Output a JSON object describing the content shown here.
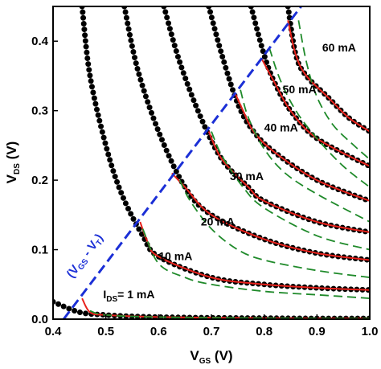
{
  "chart_data": {
    "type": "line",
    "xlabel": {
      "main": "V",
      "sub": "GS",
      "unit": " (V)"
    },
    "ylabel": {
      "main": "V",
      "sub": "DS",
      "unit": " (V)"
    },
    "xlim": [
      0.4,
      1.0
    ],
    "ylim": [
      0.0,
      0.45
    ],
    "xticks": [
      "0.4",
      "0.5",
      "0.6",
      "0.7",
      "0.8",
      "0.9",
      "1.0"
    ],
    "yticks": [
      "0.0",
      "0.1",
      "0.2",
      "0.3",
      "0.4"
    ],
    "grid": false,
    "threshold_voltage": 0.42,
    "boundary_line": {
      "style": "dashed",
      "color": "#1b2fd6",
      "label_parts": {
        "open": "(V",
        "sub1": "GS",
        "mid": " - V",
        "sub2": "T",
        "close": ")"
      },
      "x": [
        0.42,
        0.87
      ],
      "y": [
        0.0,
        0.45
      ]
    },
    "current_labels": [
      {
        "text": "I",
        "sub": "DS",
        "rest": "= 1 mA",
        "x": 0.495,
        "y": 0.03
      },
      {
        "text": "10 mA",
        "x": 0.6,
        "y": 0.085
      },
      {
        "text": "20 mA",
        "x": 0.68,
        "y": 0.135
      },
      {
        "text": "30 mA",
        "x": 0.735,
        "y": 0.2
      },
      {
        "text": "40 mA",
        "x": 0.8,
        "y": 0.27
      },
      {
        "text": "50 mA",
        "x": 0.835,
        "y": 0.325
      },
      {
        "text": "60 mA",
        "x": 0.91,
        "y": 0.385
      }
    ],
    "series": [
      {
        "style": "dots",
        "color": "#000000",
        "curves": [
          {
            "current": 1,
            "x": [
              0.4,
              0.45,
              0.5,
              0.55,
              0.6,
              0.7,
              0.8,
              0.9,
              1.0
            ],
            "y": [
              0.025,
              0.01,
              0.006,
              0.004,
              0.003,
              0.002,
              0.0015,
              0.001,
              0.001
            ]
          },
          {
            "current": 10,
            "x": [
              0.455,
              0.47,
              0.5,
              0.53,
              0.57,
              0.6,
              0.7,
              0.8,
              0.9,
              1.0
            ],
            "y": [
              0.45,
              0.35,
              0.25,
              0.18,
              0.12,
              0.09,
              0.06,
              0.05,
              0.045,
              0.042
            ]
          },
          {
            "current": 20,
            "x": [
              0.535,
              0.56,
              0.6,
              0.65,
              0.7,
              0.8,
              0.9,
              1.0
            ],
            "y": [
              0.45,
              0.36,
              0.27,
              0.19,
              0.15,
              0.115,
              0.095,
              0.085
            ]
          },
          {
            "current": 30,
            "x": [
              0.61,
              0.64,
              0.68,
              0.72,
              0.77,
              0.8,
              0.9,
              1.0
            ],
            "y": [
              0.45,
              0.37,
              0.29,
              0.23,
              0.19,
              0.17,
              0.14,
              0.125
            ]
          },
          {
            "current": 40,
            "x": [
              0.695,
              0.72,
              0.75,
              0.78,
              0.82,
              0.9,
              1.0
            ],
            "y": [
              0.45,
              0.38,
              0.31,
              0.27,
              0.24,
              0.2,
              0.17
            ]
          },
          {
            "current": 50,
            "x": [
              0.775,
              0.8,
              0.82,
              0.85,
              0.9,
              1.0
            ],
            "y": [
              0.45,
              0.38,
              0.34,
              0.3,
              0.26,
              0.22
            ]
          },
          {
            "current": 60,
            "x": [
              0.845,
              0.86,
              0.88,
              0.92,
              0.96,
              1.0
            ],
            "y": [
              0.45,
              0.38,
              0.35,
              0.32,
              0.29,
              0.27
            ]
          }
        ]
      },
      {
        "style": "solid",
        "color": "#e8221c",
        "curves": [
          {
            "current": 1,
            "x": [
              0.455,
              0.47,
              0.5,
              0.6,
              0.8,
              1.0
            ],
            "y": [
              0.03,
              0.01,
              0.006,
              0.003,
              0.0015,
              0.001
            ]
          },
          {
            "current": 10,
            "x": [
              0.565,
              0.58,
              0.6,
              0.7,
              0.8,
              0.9,
              1.0
            ],
            "y": [
              0.14,
              0.11,
              0.09,
              0.06,
              0.05,
              0.045,
              0.042
            ]
          },
          {
            "current": 20,
            "x": [
              0.625,
              0.65,
              0.7,
              0.8,
              0.9,
              1.0
            ],
            "y": [
              0.21,
              0.19,
              0.15,
              0.115,
              0.095,
              0.085
            ]
          },
          {
            "current": 30,
            "x": [
              0.695,
              0.72,
              0.77,
              0.8,
              0.9,
              1.0
            ],
            "y": [
              0.27,
              0.23,
              0.19,
              0.17,
              0.14,
              0.125
            ]
          },
          {
            "current": 40,
            "x": [
              0.745,
              0.76,
              0.78,
              0.82,
              0.9,
              1.0
            ],
            "y": [
              0.325,
              0.3,
              0.27,
              0.24,
              0.2,
              0.17
            ]
          },
          {
            "current": 50,
            "x": [
              0.795,
              0.82,
              0.85,
              0.9,
              1.0
            ],
            "y": [
              0.375,
              0.34,
              0.3,
              0.26,
              0.22
            ]
          },
          {
            "current": 60,
            "x": [
              0.845,
              0.86,
              0.88,
              0.92,
              0.96,
              1.0
            ],
            "y": [
              0.43,
              0.38,
              0.35,
              0.32,
              0.29,
              0.27
            ]
          }
        ]
      },
      {
        "style": "dashed",
        "color": "#1f8a2a",
        "curves": [
          {
            "current": 1,
            "x": [
              0.47,
              0.5,
              0.6,
              0.8,
              1.0
            ],
            "y": [
              0.012,
              0.006,
              0.003,
              0.0015,
              0.001
            ]
          },
          {
            "current": 10,
            "x": [
              0.57,
              0.6,
              0.65,
              0.7,
              0.8,
              0.9,
              1.0
            ],
            "y": [
              0.13,
              0.08,
              0.06,
              0.05,
              0.04,
              0.035,
              0.03
            ]
          },
          {
            "current": 20,
            "x": [
              0.64,
              0.66,
              0.7,
              0.75,
              0.8,
              0.9,
              1.0
            ],
            "y": [
              0.2,
              0.17,
              0.13,
              0.1,
              0.085,
              0.07,
              0.06
            ]
          },
          {
            "current": 30,
            "x": [
              0.7,
              0.72,
              0.76,
              0.8,
              0.9,
              1.0
            ],
            "y": [
              0.27,
              0.235,
              0.19,
              0.16,
              0.12,
              0.1
            ]
          },
          {
            "current": 40,
            "x": [
              0.755,
              0.77,
              0.8,
              0.84,
              0.9,
              1.0
            ],
            "y": [
              0.33,
              0.29,
              0.245,
              0.21,
              0.18,
              0.14
            ]
          },
          {
            "current": 50,
            "x": [
              0.81,
              0.83,
              0.86,
              0.9,
              0.95,
              1.0
            ],
            "y": [
              0.39,
              0.345,
              0.3,
              0.26,
              0.22,
              0.19
            ]
          },
          {
            "current": 60,
            "x": [
              0.865,
              0.88,
              0.9,
              0.93,
              0.97,
              1.0
            ],
            "y": [
              0.43,
              0.37,
              0.32,
              0.28,
              0.25,
              0.23
            ]
          }
        ]
      }
    ]
  }
}
